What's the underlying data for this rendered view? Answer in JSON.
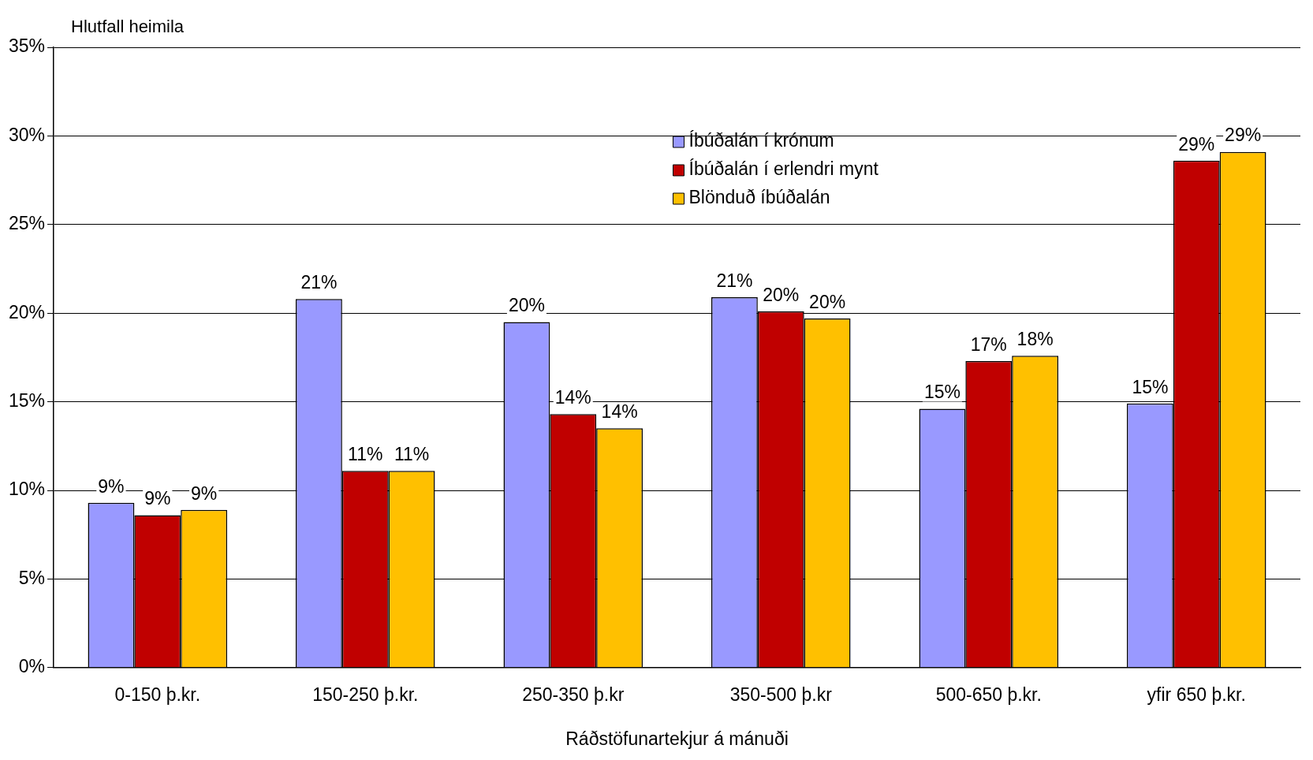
{
  "chart_data": {
    "type": "bar",
    "ylabel": "Hlutfall heimila",
    "xlabel": "Ráðstöfunartekjur á mánuði",
    "categories": [
      "0-150 þ.kr.",
      "150-250 þ.kr.",
      "250-350 þ.kr",
      "350-500 þ.kr",
      "500-650 þ.kr.",
      "yfir 650 þ.kr."
    ],
    "series": [
      {
        "name": "Íbúðalán í krónum",
        "color": "#9999ff",
        "values": [
          9.3,
          20.8,
          19.5,
          20.9,
          14.6,
          14.9
        ],
        "value_labels": [
          "9%",
          "21%",
          "20%",
          "21%",
          "15%",
          "15%"
        ]
      },
      {
        "name": "Íbúðalán í erlendri mynt",
        "color": "#c00000",
        "values": [
          8.6,
          11.1,
          14.3,
          20.1,
          17.3,
          28.6
        ],
        "value_labels": [
          "9%",
          "11%",
          "14%",
          "20%",
          "17%",
          "29%"
        ]
      },
      {
        "name": "Blönduð íbúðalán",
        "color": "#ffc000",
        "values": [
          8.9,
          11.1,
          13.5,
          19.7,
          17.6,
          29.1
        ],
        "value_labels": [
          "9%",
          "11%",
          "14%",
          "20%",
          "18%",
          "29%"
        ]
      }
    ],
    "ylim": [
      0,
      35
    ],
    "yticks": [
      {
        "value": 0,
        "label": "0%"
      },
      {
        "value": 5,
        "label": "5%"
      },
      {
        "value": 10,
        "label": "10%"
      },
      {
        "value": 15,
        "label": "15%"
      },
      {
        "value": 20,
        "label": "20%"
      },
      {
        "value": 25,
        "label": "25%"
      },
      {
        "value": 30,
        "label": "30%"
      },
      {
        "value": 35,
        "label": "35%"
      }
    ],
    "grid": "y",
    "legend": "top"
  }
}
